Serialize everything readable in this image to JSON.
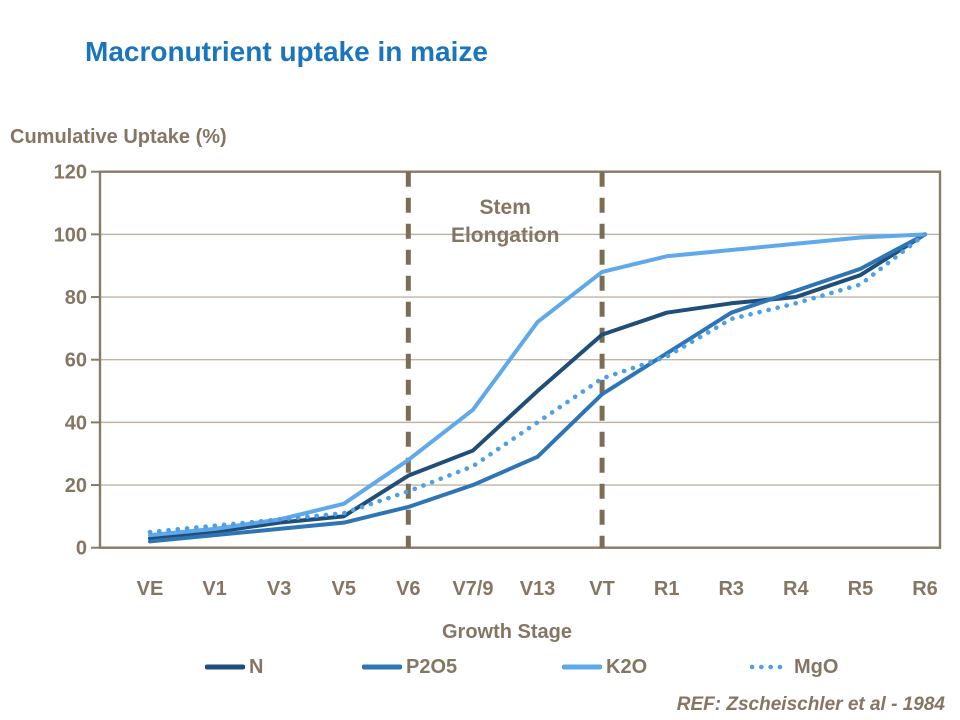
{
  "title": "Macronutrient uptake in maize",
  "y_axis_title": "Cumulative Uptake (%)",
  "x_axis_title": "Growth Stage",
  "reference": "REF: Zscheischler et al - 1984",
  "colors": {
    "title_blue": "#1B75BD",
    "chart_text_brown": "#857663",
    "axis_brown": "#8A7A66",
    "gridline": "#BFB4A5",
    "dashed_marker": "#7C6D57"
  },
  "chart_data": {
    "type": "line",
    "categories": [
      "VE",
      "V1",
      "V3",
      "V5",
      "V6",
      "V7/9",
      "V13",
      "VT",
      "R1",
      "R3",
      "R4",
      "R5",
      "R6"
    ],
    "series": [
      {
        "name": "N",
        "color": "#1F4E79",
        "style": "solid",
        "values": [
          3,
          5,
          8,
          10,
          23,
          31,
          50,
          68,
          75,
          78,
          80,
          87,
          100
        ]
      },
      {
        "name": "P2O5",
        "color": "#2E75B6",
        "style": "solid",
        "values": [
          2,
          4,
          6,
          8,
          13,
          20,
          29,
          49,
          62,
          75,
          82,
          89,
          100
        ]
      },
      {
        "name": "K2O",
        "color": "#5FA8EA",
        "style": "solid",
        "values": [
          4,
          6,
          9,
          14,
          28,
          44,
          72,
          88,
          93,
          95,
          97,
          99,
          100
        ]
      },
      {
        "name": "MgO",
        "color": "#4D9FE6",
        "style": "dotted",
        "values": [
          5,
          7,
          9,
          11,
          18,
          26,
          40,
          54,
          61,
          73,
          78,
          84,
          100
        ]
      }
    ],
    "ylim": [
      0,
      120
    ],
    "ytick_step": 20,
    "grid": "horizontal",
    "legend_position": "bottom",
    "annotation": {
      "lines": [
        "Stem",
        "Elongation"
      ],
      "between_categories": [
        "V6",
        "VT"
      ]
    }
  }
}
